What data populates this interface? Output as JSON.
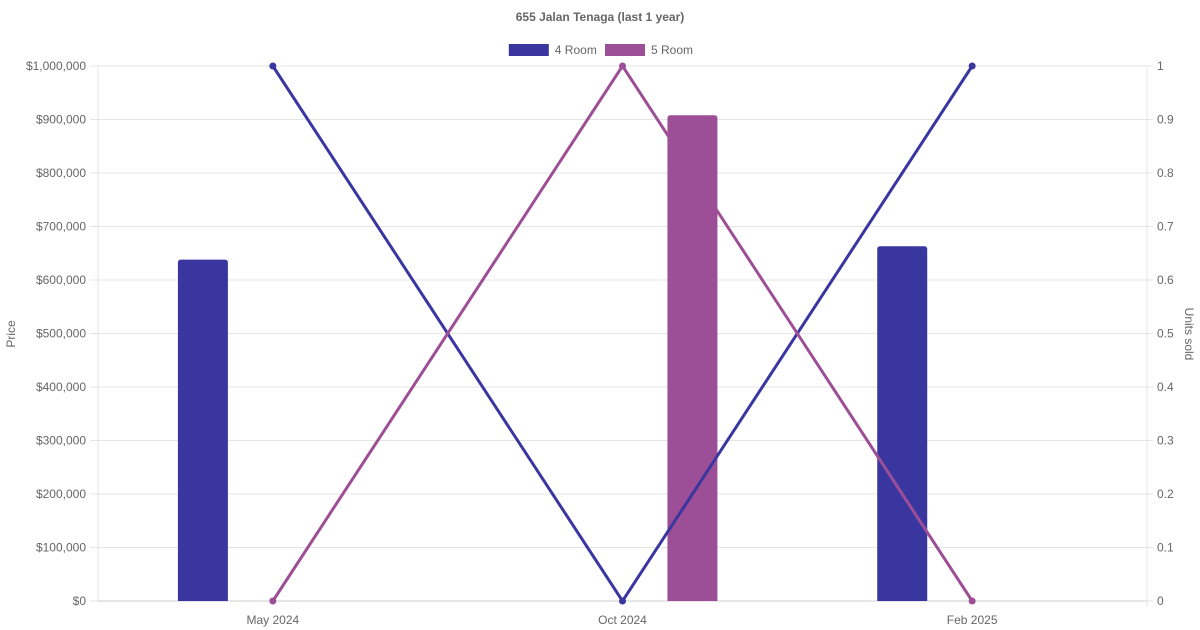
{
  "chart_data": {
    "type": "bar+line",
    "title": "655 Jalan Tenaga (last 1 year)",
    "categories": [
      "May 2024",
      "Oct 2024",
      "Feb 2025"
    ],
    "y_left": {
      "label": "Price",
      "lim": [
        0,
        1000000
      ],
      "ticks": [
        0,
        100000,
        200000,
        300000,
        400000,
        500000,
        600000,
        700000,
        800000,
        900000,
        1000000
      ],
      "tick_labels": [
        "$0",
        "$100,000",
        "$200,000",
        "$300,000",
        "$400,000",
        "$500,000",
        "$600,000",
        "$700,000",
        "$800,000",
        "$900,000",
        "$1,000,000"
      ]
    },
    "y_right": {
      "label": "Units sold",
      "lim": [
        0,
        1
      ],
      "ticks": [
        0,
        0.1,
        0.2,
        0.3,
        0.4,
        0.5,
        0.6,
        0.7,
        0.8,
        0.9,
        1
      ],
      "tick_labels": [
        "0",
        "0.1",
        "0.2",
        "0.3",
        "0.4",
        "0.5",
        "0.6",
        "0.7",
        "0.8",
        "0.9",
        "1"
      ]
    },
    "grid": true,
    "legend_position": "top",
    "series": [
      {
        "name": "4 Room",
        "color": "#3a36a0",
        "price": [
          638000,
          null,
          663000
        ],
        "units_sold": [
          1,
          0,
          1
        ]
      },
      {
        "name": "5 Room",
        "color": "#9c4f96",
        "price": [
          null,
          908000,
          null
        ],
        "units_sold": [
          0,
          1,
          0
        ]
      }
    ]
  }
}
